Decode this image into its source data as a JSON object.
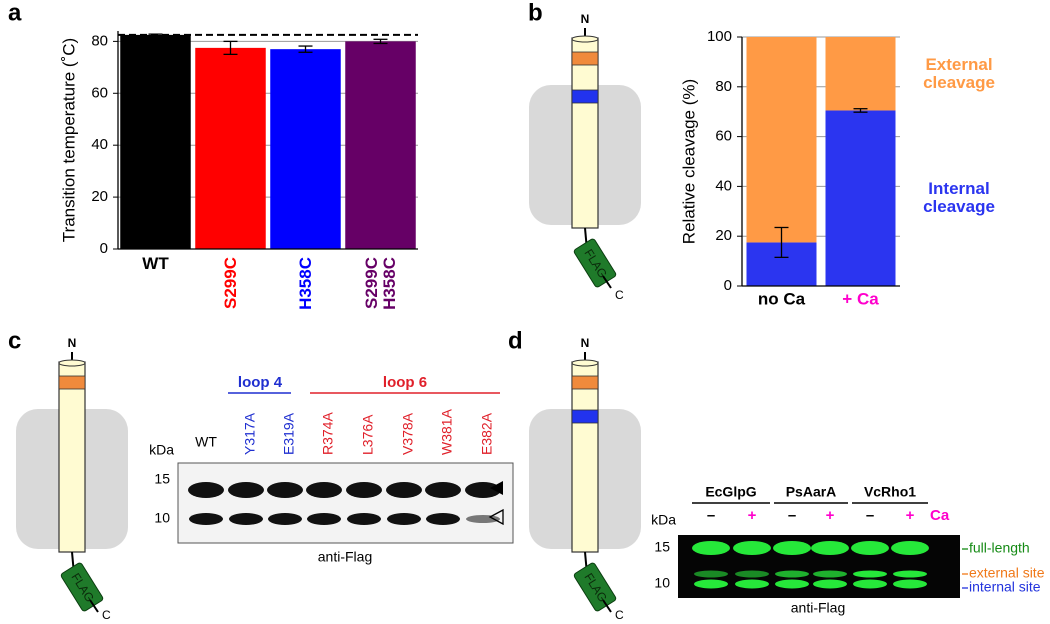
{
  "panel_labels": [
    "a",
    "b",
    "c",
    "d"
  ],
  "chart_data": [
    {
      "type": "bar",
      "y_label": "Transition temperature (˚C)",
      "categories": [
        "WT",
        "S299C",
        "H358C",
        "S299C\nH358C"
      ],
      "values": [
        82.5,
        77.5,
        77,
        80
      ],
      "errors": [
        0.3,
        2.5,
        1.2,
        0.8
      ],
      "colors": [
        "#000000",
        "#ff0000",
        "#0000ff",
        "#660066"
      ],
      "reference_line": 82.5,
      "ylim": [
        0,
        84
      ],
      "yticks": [
        0,
        20,
        40,
        60,
        80
      ],
      "grid": true
    },
    {
      "type": "stacked_bar",
      "y_label": "Relative cleavage (%)",
      "categories": [
        "no Ca",
        "+ Ca"
      ],
      "category_colors": [
        "#000000",
        "#ff00cc"
      ],
      "series": [
        {
          "name": "Internal cleavage",
          "color": "#2b35f0",
          "values": [
            17.5,
            70.5
          ],
          "errors": [
            6,
            0.7
          ]
        },
        {
          "name": "External cleavage",
          "color": "#ff9a45",
          "values": [
            82.5,
            29.5
          ]
        }
      ],
      "ylim": [
        0,
        100
      ],
      "yticks": [
        0,
        20,
        40,
        60,
        80,
        100
      ],
      "grid": true
    }
  ],
  "cartoon": {
    "n": "N",
    "tag": "FLAG",
    "c": "C"
  },
  "blot_c": {
    "groups": [
      {
        "label": "loop 4",
        "color": "#1f2fd0"
      },
      {
        "label": "loop 6",
        "color": "#e0202a"
      }
    ],
    "lanes": [
      "WT",
      "Y317A",
      "E319A",
      "R374A",
      "L376A",
      "V378A",
      "W381A",
      "E382A"
    ],
    "unit": "kDa",
    "markers": [
      15,
      10
    ],
    "antibody": "anti-Flag"
  },
  "blot_d": {
    "groups": [
      "EcGlpG",
      "PsAarA",
      "VcRho1"
    ],
    "conditions": [
      "–",
      "+",
      "–",
      "+",
      "–",
      "+"
    ],
    "cofactor": "Ca",
    "unit": "kDa",
    "markers": [
      15,
      10
    ],
    "antibody": "anti-Flag",
    "band_labels": [
      {
        "label": "full-length",
        "color": "#148a14"
      },
      {
        "label": "external site",
        "color": "#f07818"
      },
      {
        "label": "internal site",
        "color": "#2233dd"
      }
    ]
  }
}
